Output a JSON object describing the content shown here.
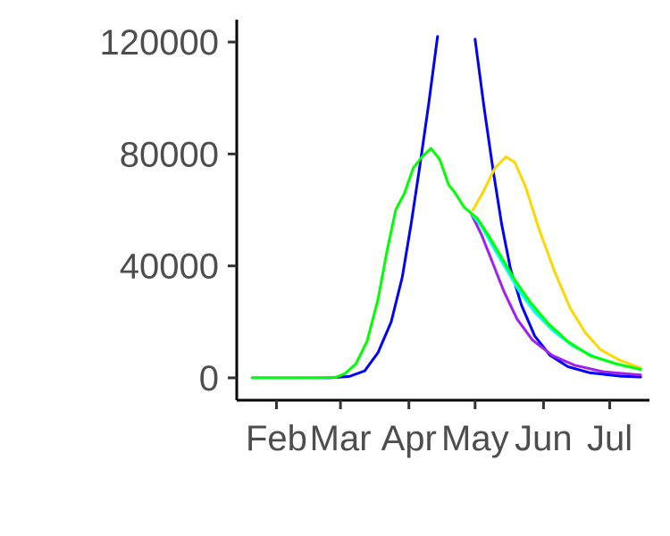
{
  "chart_data": {
    "type": "line",
    "title": "",
    "xlabel": "",
    "ylabel": "",
    "x_unit": "date",
    "xlim": [
      "2020-01-14",
      "2020-07-19"
    ],
    "ylim": [
      -8000,
      128000
    ],
    "x_ticks": [
      {
        "date": "2020-02-01",
        "label": "Feb"
      },
      {
        "date": "2020-03-01",
        "label": "Mar"
      },
      {
        "date": "2020-04-01",
        "label": "Apr"
      },
      {
        "date": "2020-05-01",
        "label": "May"
      },
      {
        "date": "2020-06-01",
        "label": "Jun"
      },
      {
        "date": "2020-07-01",
        "label": "Jul"
      }
    ],
    "y_ticks": [
      {
        "value": 0,
        "label": "0"
      },
      {
        "value": 40000,
        "label": "40000"
      },
      {
        "value": 80000,
        "label": "80000"
      },
      {
        "value": 120000,
        "label": "120000"
      }
    ],
    "grid": false,
    "legend": "none",
    "series": [
      {
        "color": "#0000ff",
        "points": [
          [
            "2020-01-21",
            0
          ],
          [
            "2020-02-01",
            0
          ],
          [
            "2020-02-15",
            0
          ],
          [
            "2020-02-25",
            0
          ],
          [
            "2020-03-05",
            500
          ],
          [
            "2020-03-12",
            2500
          ],
          [
            "2020-03-18",
            9000
          ],
          [
            "2020-03-24",
            20000
          ],
          [
            "2020-03-29",
            36000
          ],
          [
            "2020-04-02",
            55000
          ],
          [
            "2020-04-06",
            76000
          ],
          [
            "2020-04-10",
            98000
          ],
          [
            "2020-04-14",
            122000
          ]
        ]
      },
      {
        "color": "#0000ff",
        "points": [
          [
            "2020-05-01",
            121000
          ],
          [
            "2020-05-05",
            97000
          ],
          [
            "2020-05-09",
            75000
          ],
          [
            "2020-05-13",
            55000
          ],
          [
            "2020-05-17",
            39000
          ],
          [
            "2020-05-22",
            26000
          ],
          [
            "2020-05-28",
            15000
          ],
          [
            "2020-06-04",
            8000
          ],
          [
            "2020-06-12",
            4000
          ],
          [
            "2020-06-22",
            1800
          ],
          [
            "2020-07-06",
            600
          ],
          [
            "2020-07-15",
            300
          ]
        ]
      },
      {
        "color": "#a020f0",
        "points": [
          [
            "2020-04-29",
            59000
          ],
          [
            "2020-05-04",
            51000
          ],
          [
            "2020-05-09",
            41000
          ],
          [
            "2020-05-14",
            31000
          ],
          [
            "2020-05-20",
            21000
          ],
          [
            "2020-05-27",
            13500
          ],
          [
            "2020-06-05",
            8000
          ],
          [
            "2020-06-15",
            4500
          ],
          [
            "2020-06-28",
            2200
          ],
          [
            "2020-07-15",
            1000
          ]
        ]
      },
      {
        "color": "#ffd700",
        "points": [
          [
            "2020-04-30",
            60000
          ],
          [
            "2020-05-05",
            67000
          ],
          [
            "2020-05-10",
            75000
          ],
          [
            "2020-05-15",
            79000
          ],
          [
            "2020-05-19",
            77000
          ],
          [
            "2020-05-24",
            68000
          ],
          [
            "2020-05-30",
            53000
          ],
          [
            "2020-06-06",
            38000
          ],
          [
            "2020-06-13",
            25000
          ],
          [
            "2020-06-20",
            16000
          ],
          [
            "2020-06-27",
            10000
          ],
          [
            "2020-07-05",
            6500
          ],
          [
            "2020-07-15",
            3500
          ]
        ]
      },
      {
        "color": "#00ffff",
        "points": [
          [
            "2020-04-29",
            59000
          ],
          [
            "2020-05-04",
            54000
          ],
          [
            "2020-05-09",
            47000
          ],
          [
            "2020-05-15",
            39000
          ],
          [
            "2020-05-21",
            31000
          ],
          [
            "2020-05-28",
            23500
          ],
          [
            "2020-06-05",
            17000
          ],
          [
            "2020-06-14",
            11500
          ],
          [
            "2020-06-24",
            7500
          ],
          [
            "2020-07-05",
            4800
          ],
          [
            "2020-07-15",
            3000
          ]
        ]
      },
      {
        "color": "#00ff00",
        "points": [
          [
            "2020-01-21",
            0
          ],
          [
            "2020-02-05",
            0
          ],
          [
            "2020-02-20",
            0
          ],
          [
            "2020-02-28",
            200
          ],
          [
            "2020-03-03",
            1500
          ],
          [
            "2020-03-08",
            5000
          ],
          [
            "2020-03-13",
            13000
          ],
          [
            "2020-03-18",
            28000
          ],
          [
            "2020-03-22",
            45000
          ],
          [
            "2020-03-26",
            60000
          ],
          [
            "2020-03-30",
            66000
          ],
          [
            "2020-04-03",
            75000
          ],
          [
            "2020-04-07",
            79000
          ],
          [
            "2020-04-11",
            82000
          ],
          [
            "2020-04-15",
            78000
          ],
          [
            "2020-04-19",
            69000
          ],
          [
            "2020-04-22",
            66000
          ],
          [
            "2020-04-26",
            61000
          ],
          [
            "2020-04-29",
            59000
          ],
          [
            "2020-05-02",
            57000
          ],
          [
            "2020-05-07",
            51000
          ],
          [
            "2020-05-13",
            43000
          ],
          [
            "2020-05-19",
            35000
          ],
          [
            "2020-05-26",
            27000
          ],
          [
            "2020-06-03",
            19500
          ],
          [
            "2020-06-12",
            13000
          ],
          [
            "2020-06-22",
            8000
          ],
          [
            "2020-07-04",
            5000
          ],
          [
            "2020-07-15",
            3000
          ]
        ]
      }
    ]
  }
}
